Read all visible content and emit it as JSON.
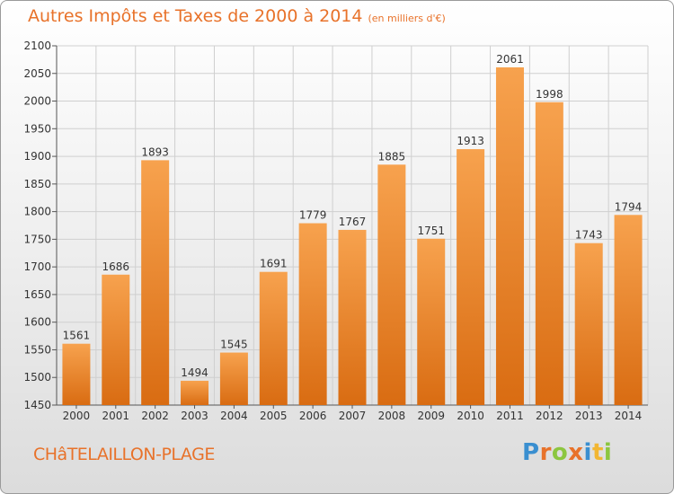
{
  "chart_title": "Autres Impôts et Taxes de 2000 à 2014",
  "chart_unit": "(en milliers d'€)",
  "city_label": "CHâTELAILLON-PLAGE",
  "logo_text": "Proxiti",
  "colors": {
    "bar_top": "#f7a24e",
    "bar_bottom": "#d96c12",
    "title": "#e8722a",
    "grid": "#cfcfcf",
    "logo_letters": [
      "#3a8fd0",
      "#e8722a",
      "#8cc63f",
      "#e8722a",
      "#3a8fd0",
      "#f2b632",
      "#8cc63f"
    ]
  },
  "chart_data": {
    "type": "bar",
    "title": "Autres Impôts et Taxes de 2000 à 2014",
    "xlabel": "",
    "ylabel": "",
    "categories": [
      "2000",
      "2001",
      "2002",
      "2003",
      "2004",
      "2005",
      "2006",
      "2007",
      "2008",
      "2009",
      "2010",
      "2011",
      "2012",
      "2013",
      "2014"
    ],
    "values": [
      1561,
      1686,
      1893,
      1494,
      1545,
      1691,
      1779,
      1767,
      1885,
      1751,
      1913,
      2061,
      1998,
      1743,
      1794
    ],
    "ylim": [
      1450,
      2100
    ],
    "yticks": [
      1450,
      1500,
      1550,
      1600,
      1650,
      1700,
      1750,
      1800,
      1850,
      1900,
      1950,
      2000,
      2050,
      2100
    ],
    "grid": true,
    "legend": "none"
  }
}
